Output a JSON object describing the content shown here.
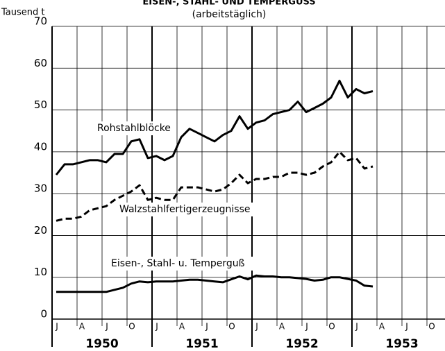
{
  "chart_data": {
    "type": "line",
    "title": "EISEN-, STAHL- UND TEMPERGUSS",
    "subtitle": "(arbeitstäglich)",
    "y_label": "Tausend t",
    "categories": [
      "J",
      null,
      null,
      "A",
      null,
      null,
      "J",
      null,
      null,
      "O",
      null,
      null,
      "J",
      null,
      null,
      "A",
      null,
      null,
      "J",
      null,
      null,
      "O",
      null,
      null,
      "J",
      null,
      null,
      "A",
      null,
      null,
      "J",
      null,
      null,
      "O",
      null,
      null,
      "J",
      null,
      null,
      "A",
      null,
      null,
      "J",
      null,
      null,
      "O",
      null,
      null
    ],
    "x_groups": [
      "1950",
      "1951",
      "1952",
      "1953"
    ],
    "ylim": [
      0,
      70
    ],
    "yticks": [
      0,
      10,
      20,
      30,
      40,
      50,
      60,
      70
    ],
    "grid": true,
    "series": [
      {
        "name": "Rohstahlblöcke",
        "color": "#000000",
        "style": "solid",
        "values": [
          34.5,
          37,
          37,
          37.5,
          38,
          38,
          37.5,
          39.5,
          39.5,
          42.5,
          43,
          38.5,
          39,
          38,
          39,
          43.5,
          45.5,
          44.5,
          43.5,
          42.5,
          44,
          45,
          48.5,
          45.5,
          47,
          47.5,
          49,
          49.5,
          50,
          52,
          49.5,
          50.5,
          51.5,
          53,
          57,
          53,
          55,
          54,
          54.5,
          null,
          null,
          null,
          null,
          null,
          null,
          null,
          null,
          null
        ]
      },
      {
        "name": "Walzstahlfertigerzeugnisse",
        "color": "#000000",
        "style": "dashed",
        "values": [
          23.5,
          24,
          24,
          24.5,
          26,
          26.5,
          27,
          28.5,
          29.5,
          30.5,
          32,
          28.5,
          29,
          28.5,
          28.5,
          31.5,
          31.5,
          31.5,
          31,
          30.5,
          31,
          32.5,
          34.5,
          32.5,
          33.5,
          33.5,
          34,
          34,
          35,
          35,
          34.5,
          35,
          36.5,
          37.5,
          40,
          38,
          38.5,
          36,
          36.5,
          null,
          null,
          null,
          null,
          null,
          null,
          null,
          null,
          null
        ]
      },
      {
        "name": "Eisen-, Stahl- u. Temperguß",
        "color": "#000000",
        "style": "solid",
        "values": [
          6.5,
          6.5,
          6.5,
          6.5,
          6.5,
          6.5,
          6.5,
          7,
          7.5,
          8.5,
          9,
          8.8,
          9,
          9,
          9,
          9.2,
          9.4,
          9.4,
          9.2,
          9,
          8.8,
          9.5,
          10.2,
          9.5,
          10.4,
          10.2,
          10.2,
          10,
          10,
          9.8,
          9.6,
          9.2,
          9.4,
          10,
          10,
          9.6,
          9.2,
          8,
          7.8,
          null,
          null,
          null,
          null,
          null,
          null,
          null,
          null,
          null
        ]
      }
    ]
  }
}
